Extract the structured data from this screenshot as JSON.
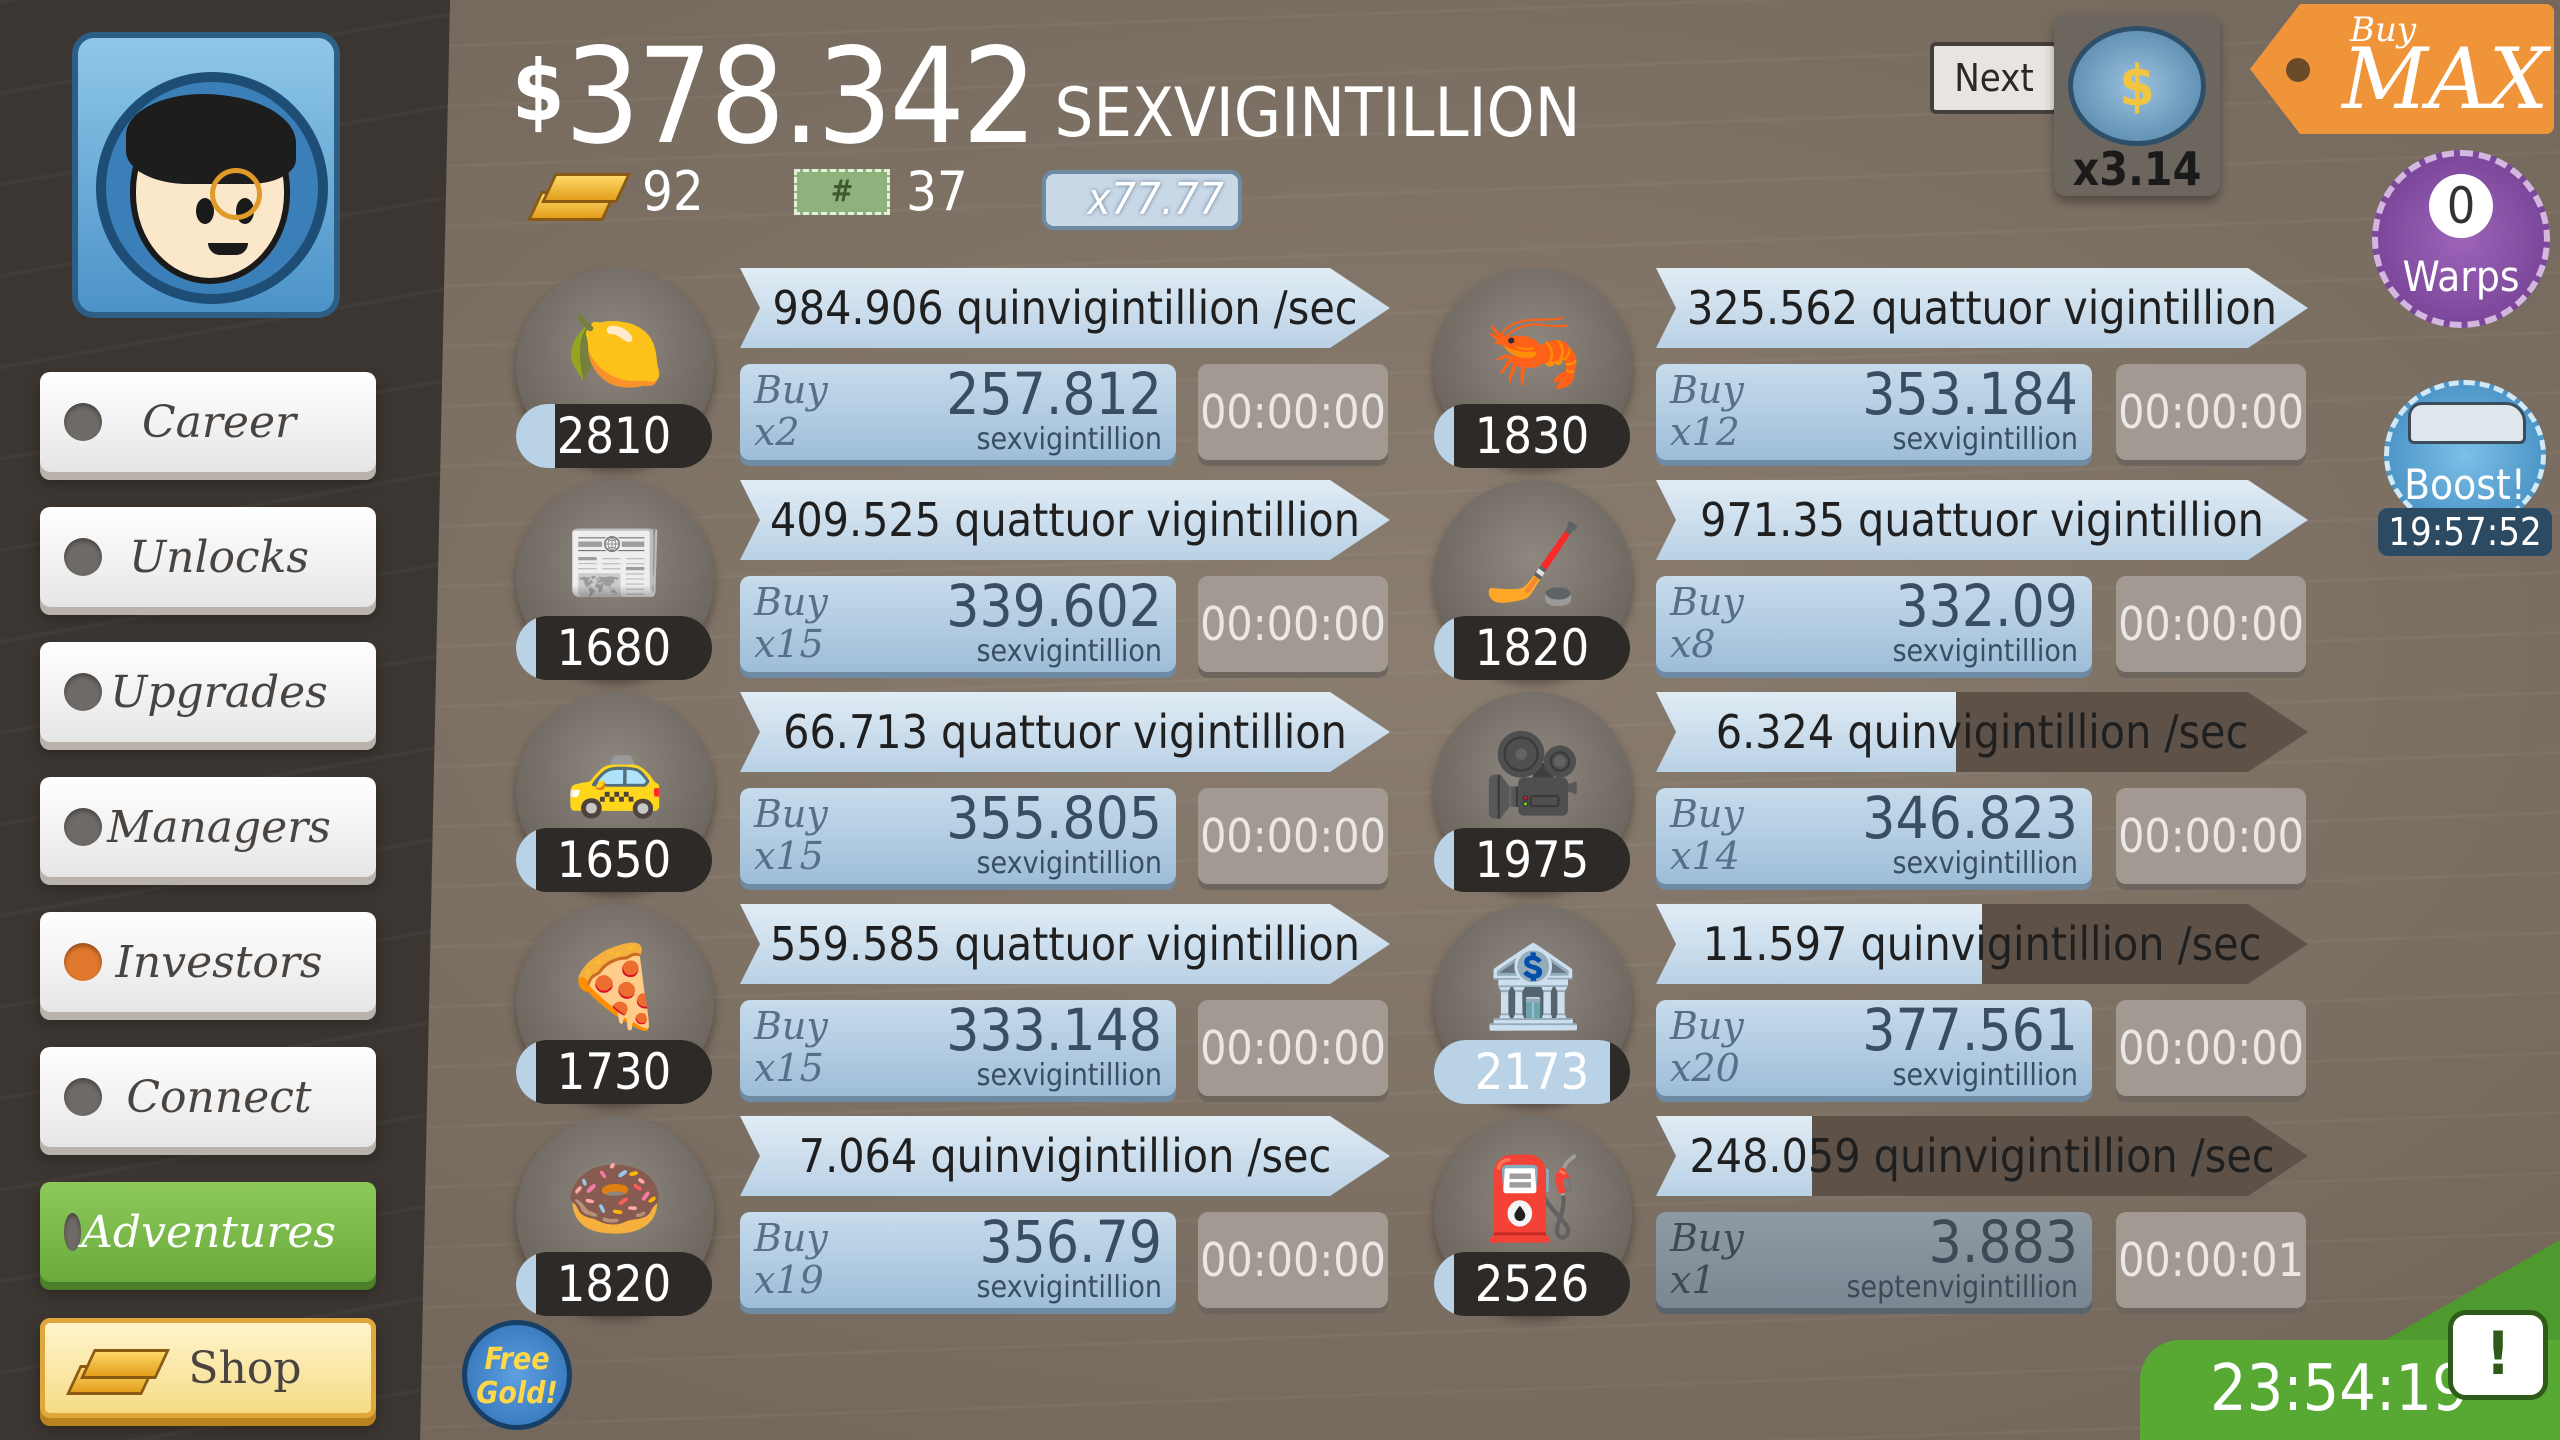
{
  "money": {
    "symbol": "$",
    "amount": "378.342",
    "unit": "SEXVIGINTILLION"
  },
  "stats": {
    "gold": "92",
    "tickets": "37",
    "ticket_mult": "x77.77"
  },
  "nav": [
    {
      "label": "Career",
      "active": false
    },
    {
      "label": "Unlocks",
      "active": false
    },
    {
      "label": "Upgrades",
      "active": false
    },
    {
      "label": "Managers",
      "active": false
    },
    {
      "label": "Investors",
      "active": true
    },
    {
      "label": "Connect",
      "active": false
    },
    {
      "label": "Adventures",
      "active": false
    },
    {
      "label": "Shop",
      "active": false
    }
  ],
  "top": {
    "next": "Next",
    "multiplier": "x3.14",
    "buy_label": "Buy",
    "max_label": "MAX"
  },
  "warps": {
    "count": "0",
    "label": "Warps"
  },
  "boost": {
    "label": "Boost!",
    "time": "19:57:52"
  },
  "tv_timer": "23:54:19",
  "free_gold": "Free Gold!",
  "businesses": [
    {
      "icon": "lemon",
      "count": "2810",
      "rate": "984.906 quinvigintillion /sec",
      "buy": "Buy",
      "mult": "x2",
      "cost": "257.812",
      "cost_unit": "sexvigintillion",
      "timer": "00:00:00"
    },
    {
      "icon": "shrimp",
      "count": "1830",
      "rate": "325.562 quattuor vigintillion /sec",
      "buy": "Buy",
      "mult": "x12",
      "cost": "353.184",
      "cost_unit": "sexvigintillion",
      "timer": "00:00:00"
    },
    {
      "icon": "newspaper",
      "count": "1680",
      "rate": "409.525 quattuor vigintillion /sec",
      "buy": "Buy",
      "mult": "x15",
      "cost": "339.602",
      "cost_unit": "sexvigintillion",
      "timer": "00:00:00"
    },
    {
      "icon": "hockey",
      "count": "1820",
      "rate": "971.35 quattuor vigintillion /sec",
      "buy": "Buy",
      "mult": "x8",
      "cost": "332.09",
      "cost_unit": "sexvigintillion",
      "timer": "00:00:00"
    },
    {
      "icon": "car",
      "count": "1650",
      "rate": "66.713 quattuor vigintillion /sec",
      "buy": "Buy",
      "mult": "x15",
      "cost": "355.805",
      "cost_unit": "sexvigintillion",
      "timer": "00:00:00"
    },
    {
      "icon": "camera",
      "count": "1975",
      "rate": "6.324 quinvigintillion /sec",
      "buy": "Buy",
      "mult": "x14",
      "cost": "346.823",
      "cost_unit": "sexvigintillion",
      "timer": "00:00:00"
    },
    {
      "icon": "pizza",
      "count": "1730",
      "rate": "559.585 quattuor vigintillion /sec",
      "buy": "Buy",
      "mult": "x15",
      "cost": "333.148",
      "cost_unit": "sexvigintillion",
      "timer": "00:00:00"
    },
    {
      "icon": "bank",
      "count": "2173",
      "rate": "11.597 quinvigintillion /sec",
      "buy": "Buy",
      "mult": "x20",
      "cost": "377.561",
      "cost_unit": "sexvigintillion",
      "timer": "00:00:00"
    },
    {
      "icon": "donut",
      "count": "1820",
      "rate": "7.064 quinvigintillion /sec",
      "buy": "Buy",
      "mult": "x19",
      "cost": "356.79",
      "cost_unit": "sexvigintillion",
      "timer": "00:00:00"
    },
    {
      "icon": "oil-rig",
      "count": "2526",
      "rate": "248.059 quinvigintillion /sec",
      "buy": "Buy",
      "mult": "x1",
      "cost": "3.883",
      "cost_unit": "septenvigintillion",
      "timer": "00:00:01"
    }
  ]
}
